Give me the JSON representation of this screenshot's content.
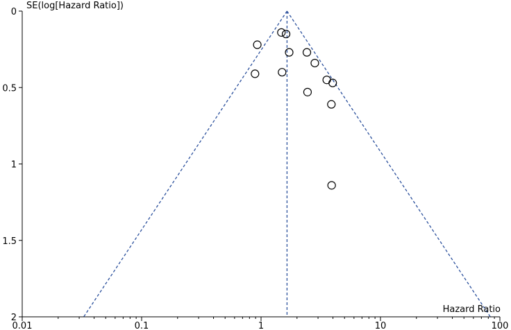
{
  "chart_data": {
    "type": "scatter",
    "title": "",
    "xlabel": "Hazard Ratio",
    "ylabel": "SE(log[Hazard Ratio])",
    "x_scale": "log",
    "x_ticks": [
      0.01,
      0.1,
      1,
      10,
      100
    ],
    "x_tick_labels": [
      "0.01",
      "0.1",
      "1",
      "10",
      "100"
    ],
    "xlim": [
      0.01,
      100
    ],
    "y_reversed": true,
    "y_ticks": [
      0,
      0.5,
      1,
      1.5,
      2
    ],
    "y_tick_labels": [
      "0",
      "0.5",
      "1",
      "1.5",
      "2"
    ],
    "ylim": [
      0,
      2
    ],
    "pooled_estimate": 1.65,
    "funnel": "95% pseudo-confidence limits",
    "line_color": "#2a4f9c",
    "point_style": "open-circle",
    "points": [
      {
        "x": 1.48,
        "y": 0.14
      },
      {
        "x": 1.62,
        "y": 0.15
      },
      {
        "x": 0.93,
        "y": 0.22
      },
      {
        "x": 1.72,
        "y": 0.27
      },
      {
        "x": 2.42,
        "y": 0.27
      },
      {
        "x": 2.82,
        "y": 0.34
      },
      {
        "x": 0.89,
        "y": 0.41
      },
      {
        "x": 1.5,
        "y": 0.4
      },
      {
        "x": 3.55,
        "y": 0.45
      },
      {
        "x": 3.98,
        "y": 0.47
      },
      {
        "x": 2.45,
        "y": 0.53
      },
      {
        "x": 3.88,
        "y": 0.61
      },
      {
        "x": 3.9,
        "y": 1.14
      }
    ]
  }
}
